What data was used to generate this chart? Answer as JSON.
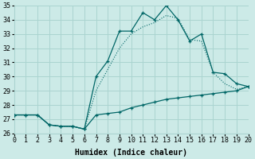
{
  "title": "",
  "xlabel": "Humidex (Indice chaleur)",
  "ylabel": "",
  "background_color": "#cceae7",
  "grid_color": "#aad4d0",
  "line_color": "#006666",
  "xlim": [
    0,
    20
  ],
  "ylim": [
    26,
    35
  ],
  "xticks": [
    0,
    1,
    2,
    3,
    4,
    5,
    6,
    7,
    8,
    9,
    10,
    11,
    12,
    13,
    14,
    15,
    16,
    17,
    18,
    19,
    20
  ],
  "yticks": [
    26,
    27,
    28,
    29,
    30,
    31,
    32,
    33,
    34,
    35
  ],
  "curve_main_x": [
    0,
    1,
    2,
    3,
    4,
    5,
    6,
    7,
    8,
    9,
    10,
    11,
    12,
    13,
    14,
    15,
    16,
    17,
    18,
    19,
    20
  ],
  "curve_main_y": [
    27.3,
    27.3,
    27.3,
    26.6,
    26.5,
    26.5,
    26.3,
    30.0,
    31.1,
    33.2,
    33.2,
    34.5,
    34.0,
    35.0,
    34.0,
    32.5,
    33.0,
    30.3,
    30.2,
    29.5,
    29.3
  ],
  "curve_lower_x": [
    0,
    1,
    2,
    3,
    4,
    5,
    6,
    7,
    8,
    9,
    10,
    11,
    12,
    13,
    14,
    15,
    16,
    17,
    18,
    19,
    20
  ],
  "curve_lower_y": [
    27.3,
    27.3,
    27.3,
    26.6,
    26.5,
    26.5,
    26.3,
    27.3,
    27.4,
    27.5,
    27.8,
    28.0,
    28.2,
    28.4,
    28.5,
    28.6,
    28.7,
    28.8,
    28.9,
    29.0,
    29.3
  ],
  "curve_dot_x": [
    0,
    2,
    3,
    4,
    5,
    6,
    7,
    8,
    9,
    10,
    11,
    12,
    13,
    14,
    15,
    16,
    17,
    18,
    19,
    20
  ],
  "curve_dot_y": [
    27.3,
    27.3,
    26.6,
    26.5,
    26.5,
    26.3,
    29.0,
    30.5,
    32.0,
    33.0,
    33.5,
    33.8,
    34.3,
    34.1,
    32.6,
    32.5,
    30.3,
    29.5,
    29.1,
    29.3
  ],
  "xlabel_fontsize": 7,
  "tick_fontsize": 6
}
